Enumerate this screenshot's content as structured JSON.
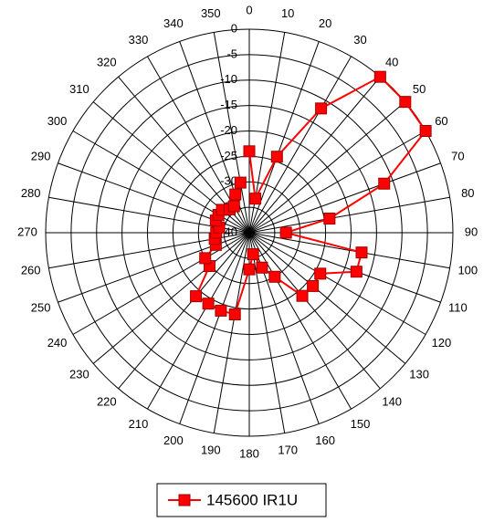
{
  "chart_data": {
    "type": "radar",
    "categories": [
      "0",
      "10",
      "20",
      "30",
      "40",
      "50",
      "60",
      "70",
      "80",
      "90",
      "100",
      "110",
      "120",
      "130",
      "140",
      "150",
      "160",
      "170",
      "180",
      "190",
      "200",
      "210",
      "220",
      "230",
      "240",
      "250",
      "260",
      "270",
      "280",
      "290",
      "300",
      "310",
      "320",
      "330",
      "340",
      "350"
    ],
    "series": [
      {
        "name": "145600 IR1U",
        "color": "#ff0000",
        "values": [
          -24,
          -33.2,
          -24.1,
          -11.8,
          0,
          0,
          0,
          -11.8,
          -24,
          -32.8,
          -17.6,
          -17.6,
          -23.9,
          -23.7,
          -23.8,
          -30,
          -32.7,
          -35.7,
          -32.8,
          -23.7,
          -23.7,
          -23.9,
          -23.7,
          -29.8,
          -30,
          -33,
          -33.1,
          -33.5,
          -34,
          -33,
          -33,
          -33,
          -34,
          -34,
          -32,
          -30
        ]
      }
    ],
    "rlim": [
      -40,
      0
    ],
    "rticks": [
      -40,
      -35,
      -30,
      -25,
      -20,
      -15,
      -10,
      -5,
      0
    ]
  }
}
